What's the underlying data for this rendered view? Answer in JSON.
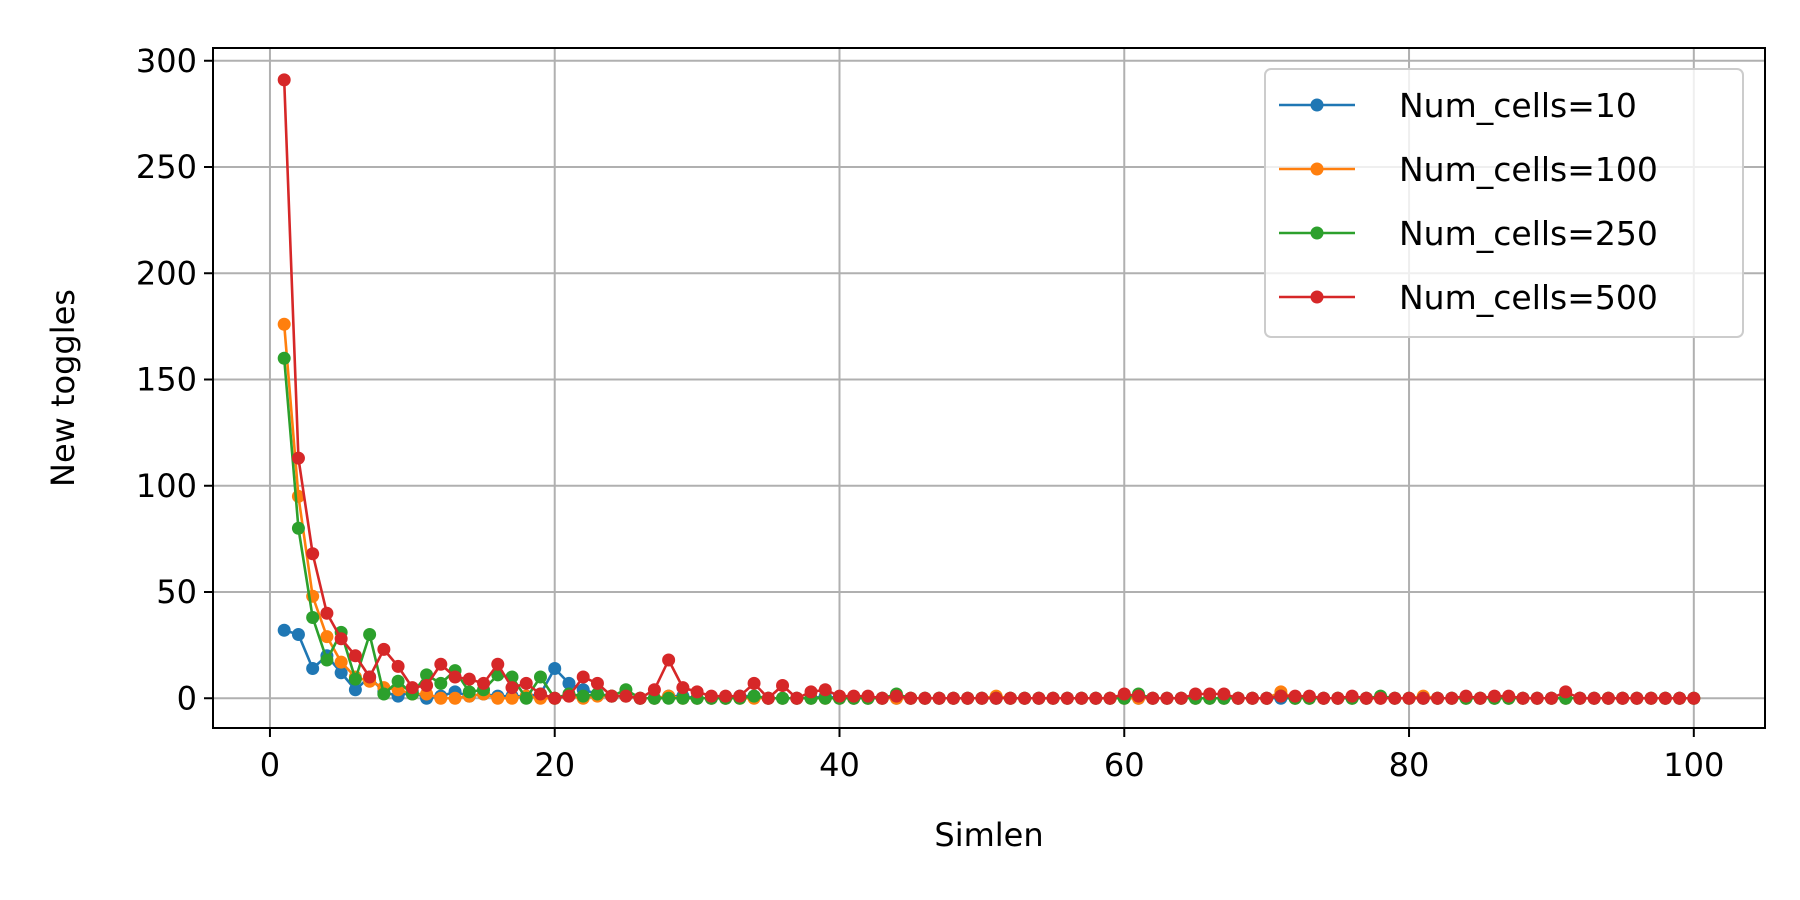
{
  "chart_data": {
    "type": "line",
    "title": "",
    "xlabel": "Simlen",
    "ylabel": "New toggles",
    "xlim": [
      -4,
      105
    ],
    "ylim": [
      -14,
      306
    ],
    "xticks": [
      0,
      20,
      40,
      60,
      80,
      100
    ],
    "yticks": [
      0,
      50,
      100,
      150,
      200,
      250,
      300
    ],
    "grid": true,
    "legend_position": "top-right",
    "x": [
      1,
      2,
      3,
      4,
      5,
      6,
      7,
      8,
      9,
      10,
      11,
      12,
      13,
      14,
      15,
      16,
      17,
      18,
      19,
      20,
      21,
      22,
      23,
      24,
      25,
      26,
      27,
      28,
      29,
      30,
      31,
      32,
      33,
      34,
      35,
      36,
      37,
      38,
      39,
      40,
      41,
      42,
      43,
      44,
      45,
      46,
      47,
      48,
      49,
      50,
      51,
      52,
      53,
      54,
      55,
      56,
      57,
      58,
      59,
      60,
      61,
      62,
      63,
      64,
      65,
      66,
      67,
      68,
      69,
      70,
      71,
      72,
      73,
      74,
      75,
      76,
      77,
      78,
      79,
      80,
      81,
      82,
      83,
      84,
      85,
      86,
      87,
      88,
      89,
      90,
      91,
      92,
      93,
      94,
      95,
      96,
      97,
      98,
      99,
      100
    ],
    "series": [
      {
        "name": "Num_cells=10",
        "color": "#1f77b4",
        "values": [
          32,
          30,
          14,
          20,
          12,
          4,
          10,
          3,
          1,
          3,
          0,
          1,
          3,
          1,
          2,
          1,
          1,
          1,
          2,
          14,
          7,
          4,
          2,
          1,
          1,
          0,
          0,
          1,
          1,
          0,
          0,
          0,
          1,
          1,
          0,
          0,
          0,
          0,
          1,
          0,
          0,
          0,
          0,
          0,
          0,
          0,
          0,
          0,
          0,
          0,
          0,
          0,
          0,
          0,
          0,
          0,
          0,
          0,
          0,
          0,
          0,
          0,
          0,
          0,
          0,
          0,
          0,
          0,
          0,
          0,
          0,
          0,
          0,
          0,
          0,
          0,
          0,
          0,
          0,
          0,
          0,
          0,
          0,
          0,
          0,
          0,
          0,
          0,
          0,
          0,
          0,
          0,
          0,
          0,
          0,
          0,
          0,
          0,
          0,
          0
        ]
      },
      {
        "name": "Num_cells=100",
        "color": "#ff7f0e",
        "values": [
          176,
          95,
          48,
          29,
          17,
          10,
          8,
          5,
          4,
          2,
          2,
          0,
          0,
          1,
          2,
          0,
          0,
          1,
          0,
          0,
          1,
          0,
          1,
          1,
          1,
          0,
          0,
          1,
          0,
          0,
          0,
          0,
          0,
          0,
          0,
          0,
          0,
          0,
          0,
          0,
          0,
          0,
          0,
          0,
          0,
          0,
          0,
          0,
          0,
          0,
          1,
          0,
          0,
          0,
          0,
          0,
          0,
          0,
          0,
          0,
          0,
          0,
          0,
          0,
          0,
          0,
          0,
          0,
          0,
          0,
          3,
          0,
          0,
          0,
          0,
          0,
          0,
          0,
          0,
          0,
          1,
          0,
          0,
          0,
          0,
          0,
          0,
          0,
          0,
          0,
          0,
          0,
          0,
          0,
          0,
          0,
          0,
          0,
          0,
          0
        ]
      },
      {
        "name": "Num_cells=250",
        "color": "#2ca02c",
        "values": [
          160,
          80,
          38,
          18,
          31,
          9,
          30,
          2,
          8,
          2,
          11,
          7,
          13,
          3,
          4,
          11,
          10,
          0,
          10,
          0,
          2,
          1,
          2,
          1,
          4,
          0,
          0,
          0,
          0,
          0,
          0,
          0,
          0,
          1,
          0,
          0,
          0,
          0,
          0,
          0,
          0,
          0,
          0,
          2,
          0,
          0,
          0,
          0,
          0,
          0,
          0,
          0,
          0,
          0,
          0,
          0,
          0,
          0,
          0,
          0,
          2,
          0,
          0,
          0,
          0,
          0,
          0,
          0,
          0,
          0,
          1,
          0,
          0,
          0,
          0,
          0,
          0,
          1,
          0,
          0,
          0,
          0,
          0,
          0,
          0,
          0,
          0,
          0,
          0,
          0,
          0,
          0,
          0,
          0,
          0,
          0,
          0,
          0,
          0,
          0
        ]
      },
      {
        "name": "Num_cells=500",
        "color": "#d62728",
        "values": [
          291,
          113,
          68,
          40,
          28,
          20,
          10,
          23,
          15,
          5,
          6,
          16,
          10,
          9,
          7,
          16,
          5,
          7,
          2,
          0,
          1,
          10,
          7,
          1,
          1,
          0,
          4,
          18,
          5,
          3,
          1,
          1,
          1,
          7,
          0,
          6,
          0,
          3,
          4,
          1,
          1,
          1,
          0,
          1,
          0,
          0,
          0,
          0,
          0,
          0,
          0,
          0,
          0,
          0,
          0,
          0,
          0,
          0,
          0,
          2,
          1,
          0,
          0,
          0,
          2,
          2,
          2,
          0,
          0,
          0,
          1,
          1,
          1,
          0,
          0,
          1,
          0,
          0,
          0,
          0,
          0,
          0,
          0,
          1,
          0,
          1,
          1,
          0,
          0,
          0,
          3,
          0,
          0,
          0,
          0,
          0,
          0,
          0,
          0,
          0
        ]
      }
    ]
  }
}
